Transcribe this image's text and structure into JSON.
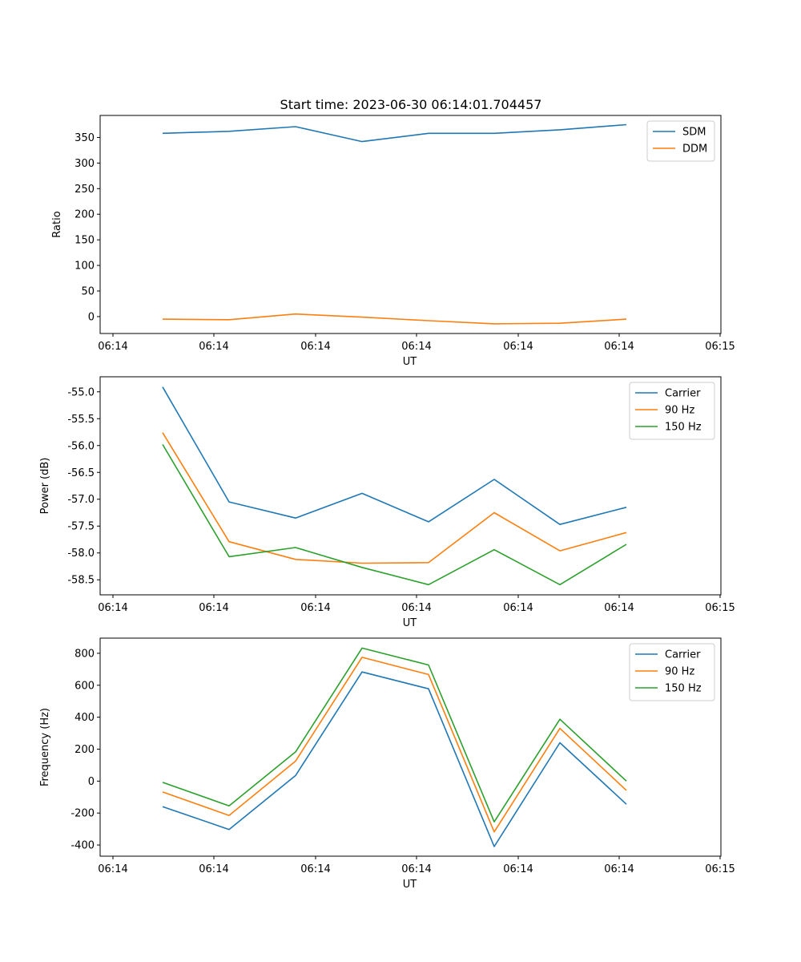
{
  "figure": {
    "title": "Start time: 2023-06-30 06:14:01.704457"
  },
  "chart_data": [
    {
      "type": "line",
      "ylabel": "Ratio",
      "xlabel": "UT",
      "x_ticks": [
        "06:14",
        "06:14",
        "06:14",
        "06:14",
        "06:14",
        "06:14",
        "06:15"
      ],
      "y_ticks": [
        0,
        50,
        100,
        150,
        200,
        250,
        300,
        350
      ],
      "ylim": [
        -33,
        393
      ],
      "grid": false,
      "legend": "upper right",
      "series": [
        {
          "name": "SDM",
          "color": "#1f77b4",
          "values": [
            358,
            362,
            371,
            342,
            358,
            358,
            365,
            375
          ]
        },
        {
          "name": "DDM",
          "color": "#ff7f0e",
          "values": [
            -5,
            -6,
            5,
            -1,
            -8,
            -14,
            -13,
            -5
          ]
        }
      ]
    },
    {
      "type": "line",
      "ylabel": "Power (dB)",
      "xlabel": "UT",
      "x_ticks": [
        "06:14",
        "06:14",
        "06:14",
        "06:14",
        "06:14",
        "06:14",
        "06:15"
      ],
      "y_ticks": [
        -55.0,
        -55.5,
        -56.0,
        -56.5,
        -57.0,
        -57.5,
        -58.0,
        -58.5
      ],
      "ylim": [
        -58.78,
        -54.72
      ],
      "grid": false,
      "legend": "upper right",
      "series": [
        {
          "name": "Carrier",
          "color": "#1f77b4",
          "values": [
            -54.91,
            -57.05,
            -57.35,
            -56.89,
            -57.42,
            -56.63,
            -57.47,
            -57.15
          ]
        },
        {
          "name": "90 Hz",
          "color": "#ff7f0e",
          "values": [
            -55.76,
            -57.79,
            -58.12,
            -58.19,
            -58.18,
            -57.25,
            -57.96,
            -57.62
          ]
        },
        {
          "name": "150 Hz",
          "color": "#2ca02c",
          "values": [
            -55.98,
            -58.07,
            -57.9,
            -58.27,
            -58.59,
            -57.94,
            -58.59,
            -57.84
          ]
        }
      ]
    },
    {
      "type": "line",
      "ylabel": "Frequency (Hz)",
      "xlabel": "UT",
      "x_ticks": [
        "06:14",
        "06:14",
        "06:14",
        "06:14",
        "06:14",
        "06:14",
        "06:15"
      ],
      "y_ticks": [
        -400,
        -200,
        0,
        200,
        400,
        600,
        800
      ],
      "ylim": [
        -470,
        895
      ],
      "grid": false,
      "legend": "upper right",
      "series": [
        {
          "name": "Carrier",
          "color": "#1f77b4",
          "values": [
            -160,
            -303,
            35,
            683,
            578,
            -410,
            240,
            -145
          ]
        },
        {
          "name": "90 Hz",
          "color": "#ff7f0e",
          "values": [
            -68,
            -215,
            125,
            775,
            667,
            -318,
            330,
            -58
          ]
        },
        {
          "name": "150 Hz",
          "color": "#2ca02c",
          "values": [
            -8,
            -155,
            183,
            833,
            727,
            -255,
            387,
            0
          ]
        }
      ]
    }
  ]
}
